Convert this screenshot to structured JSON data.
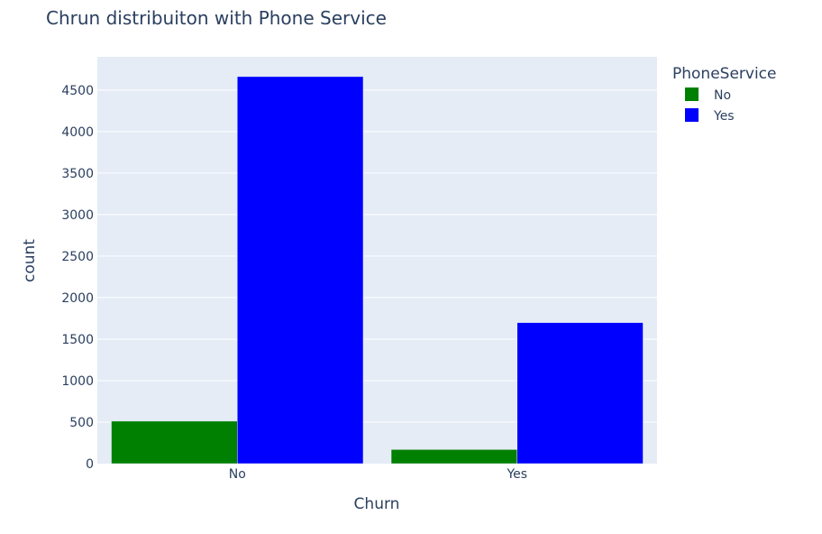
{
  "chart_data": {
    "type": "bar",
    "title": "Chrun distribuiton with Phone Service",
    "xlabel": "Churn",
    "ylabel": "count",
    "categories": [
      "No",
      "Yes"
    ],
    "ylim": [
      0,
      4900
    ],
    "yticks": [
      0,
      500,
      1000,
      1500,
      2000,
      2500,
      3000,
      3500,
      4000,
      4500
    ],
    "grid": true,
    "legend": {
      "title": "PhoneService",
      "placement": "top-right"
    },
    "series": [
      {
        "name": "No",
        "color": "#008000",
        "values": [
          512,
          170
        ]
      },
      {
        "name": "Yes",
        "color": "#0000ff",
        "values": [
          4662,
          1699
        ]
      }
    ],
    "plot_background": "#e5ecf6"
  }
}
